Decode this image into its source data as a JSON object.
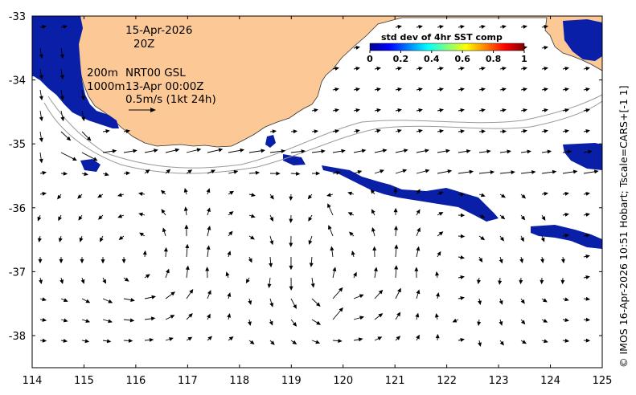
{
  "map": {
    "lon_range": [
      114,
      125
    ],
    "lat_range": [
      -38.5,
      -33
    ],
    "x_ticks": [
      "114",
      "115",
      "116",
      "117",
      "118",
      "119",
      "120",
      "121",
      "122",
      "123",
      "124",
      "125"
    ],
    "y_ticks": [
      "-33",
      "-34",
      "-35",
      "-36",
      "-37",
      "-38"
    ],
    "colors": {
      "land": "#fcc996",
      "sst_patch": "#0a1fa8",
      "coast": "#333333",
      "contour": "#9a9a9a",
      "arrow": "#000000"
    }
  },
  "annotations": {
    "date": "15-Apr-2026",
    "hour": "20Z",
    "isobath_200": "200m",
    "isobath_1000": "1000m",
    "product": "NRT00 GSL",
    "product_time": "13-Apr 00:00Z",
    "scale_label": "0.5m/s (1kt 24h)"
  },
  "colorbar": {
    "title": "std dev of 4hr SST comp",
    "ticks": [
      "0",
      "0.2",
      "0.4",
      "0.6",
      "0.8",
      "1"
    ]
  },
  "credit": "© IMOS 16-Apr-2026 10:51 Hobart; Tscale=CARS+[-1 1]"
}
